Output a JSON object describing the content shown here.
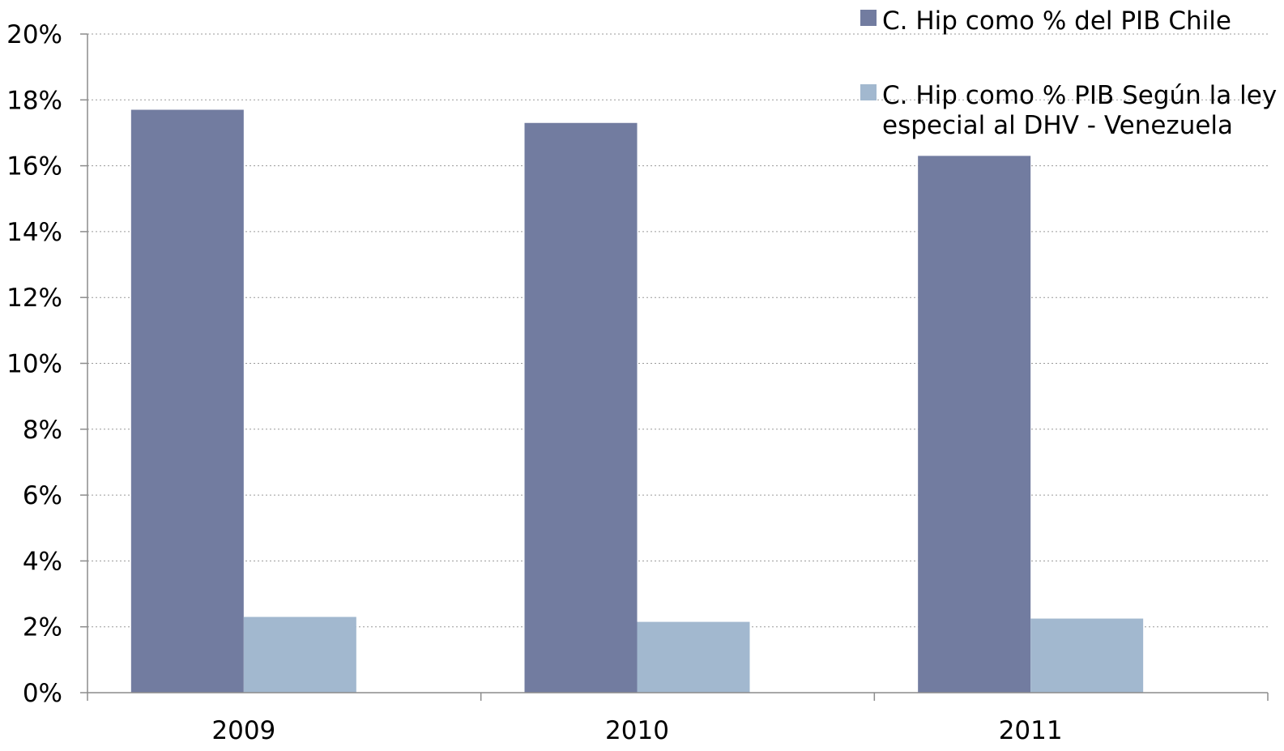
{
  "chart_data": {
    "type": "bar",
    "categories": [
      "2009",
      "2010",
      "2011"
    ],
    "series": [
      {
        "name": "C. Hip como % del PIB Chile",
        "values": [
          17.7,
          17.3,
          16.3
        ],
        "color": "#727ca0"
      },
      {
        "name": "C. Hip como % PIB Según la ley especial al DHV - Venezuela",
        "values": [
          2.3,
          2.15,
          2.25
        ],
        "color": "#a2b8cf"
      }
    ],
    "legend_lines": [
      [
        "C. Hip como % del PIB Chile"
      ],
      [
        "C. Hip como % PIB Según la ley",
        "especial al DHV - Venezuela"
      ]
    ],
    "yticks": [
      "0%",
      "2%",
      "4%",
      "6%",
      "8%",
      "10%",
      "12%",
      "14%",
      "16%",
      "18%",
      "20%"
    ],
    "ylim": [
      0,
      20
    ],
    "grid": true,
    "legend_position": "top-right",
    "title": "",
    "xlabel": "",
    "ylabel": ""
  }
}
